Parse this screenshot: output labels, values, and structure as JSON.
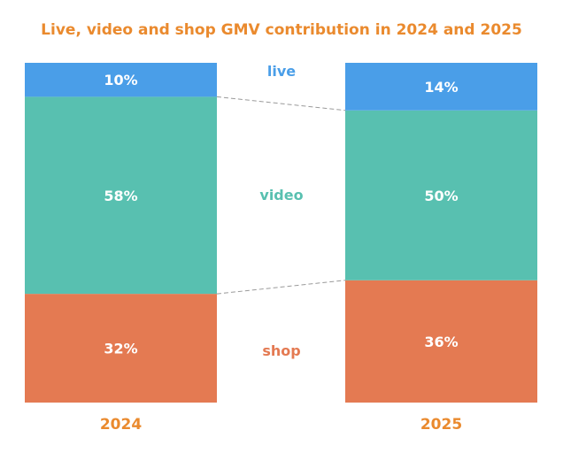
{
  "chart_data": {
    "type": "stacked-bar",
    "title": "Live, video and shop GMV contribution in 2024 and 2025",
    "categories": [
      "2024",
      "2025"
    ],
    "series": [
      {
        "name": "shop",
        "values": [
          32,
          36
        ],
        "labels": [
          "32%",
          "36%"
        ],
        "color": "#e47a52"
      },
      {
        "name": "video",
        "values": [
          58,
          50
        ],
        "labels": [
          "58%",
          "50%"
        ],
        "color": "#58c0b0"
      },
      {
        "name": "live",
        "values": [
          10,
          14
        ],
        "labels": [
          "10%",
          "14%"
        ],
        "color": "#4a9ee8"
      }
    ],
    "ylim": [
      0,
      100
    ],
    "unit": "%",
    "grid": false,
    "legend": "between bars",
    "title_color": "#ea8a2e",
    "year_color": "#ea8a2e",
    "connector_color": "#9a9a9a"
  }
}
